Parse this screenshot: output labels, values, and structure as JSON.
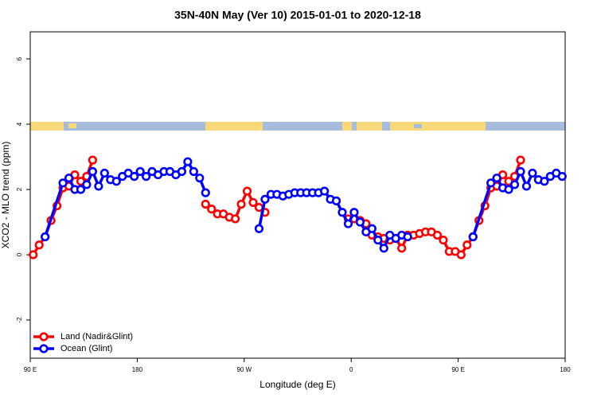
{
  "chart_data": {
    "type": "line",
    "title": "35N-40N May (Ver 10)   2015-01-01 to 2020-12-18",
    "x_label": "Longitude (deg E)",
    "y_label": "XCO2 - MLO trend (ppm)",
    "xlim": [
      90,
      540
    ],
    "xticks": [
      {
        "value": 90,
        "label": "90 E"
      },
      {
        "value": 180,
        "label": "180"
      },
      {
        "value": 270,
        "label": "90 W"
      },
      {
        "value": 360,
        "label": "0"
      },
      {
        "value": 450,
        "label": "90 E"
      },
      {
        "value": 540,
        "label": "180"
      }
    ],
    "ylim": [
      -3.17,
      6.83
    ],
    "yticks": [
      -2,
      0,
      2,
      4,
      6
    ],
    "legend": "bottom-left",
    "series": [
      {
        "name": "Land (Nadir&Glint)",
        "color": "#ff0000",
        "x": [
          92.5,
          97.5,
          102.5,
          107.5,
          112.5,
          117.5,
          122.5,
          127.5,
          132.5,
          137.5,
          142.5,
          190,
          237.5,
          242.5,
          247.5,
          252.5,
          257.5,
          262.5,
          267.5,
          272.5,
          277.5,
          282.5,
          287.5,
          320,
          357.5,
          362.5,
          367.5,
          372.5,
          377.5,
          382.5,
          387.5,
          392.5,
          397.5,
          402.5,
          407.5,
          412.5,
          417.5,
          422.5,
          427.5,
          432.5,
          437.5,
          442.5,
          447.5,
          452.5,
          457.5,
          462.5,
          467.5,
          472.5,
          477.5,
          482.5,
          487.5,
          492.5,
          497.5,
          502.5
        ],
        "values": [
          0.0,
          0.3,
          0.55,
          1.05,
          1.5,
          2.05,
          2.1,
          2.45,
          2.25,
          2.4,
          2.9,
          null,
          1.55,
          1.4,
          1.25,
          1.25,
          1.15,
          1.1,
          1.55,
          1.95,
          1.6,
          1.45,
          1.3,
          null,
          1.1,
          1.1,
          1.05,
          0.95,
          0.6,
          0.55,
          0.5,
          0.45,
          0.5,
          0.2,
          0.6,
          0.6,
          0.65,
          0.7,
          0.7,
          0.6,
          0.45,
          0.1,
          0.1,
          0.0,
          0.3,
          0.55,
          1.05,
          1.5,
          2.05,
          2.1,
          2.45,
          2.25,
          2.4,
          2.9
        ]
      },
      {
        "name": "Ocean (Glint)",
        "color": "#0000ff",
        "x": [
          102.5,
          117.5,
          122.5,
          127.5,
          132.5,
          137.5,
          142.5,
          147.5,
          152.5,
          157.5,
          162.5,
          167.5,
          172.5,
          177.5,
          182.5,
          187.5,
          192.5,
          197.5,
          202.5,
          207.5,
          212.5,
          217.5,
          222.5,
          227.5,
          232.5,
          237.5,
          260,
          282.5,
          287.5,
          292.5,
          297.5,
          302.5,
          307.5,
          312.5,
          317.5,
          322.5,
          327.5,
          332.5,
          337.5,
          342.5,
          347.5,
          352.5,
          357.5,
          362.5,
          367.5,
          372.5,
          377.5,
          382.5,
          387.5,
          392.5,
          397.5,
          402.5,
          407.5,
          435,
          462.5,
          477.5,
          482.5,
          487.5,
          492.5,
          497.5,
          502.5,
          507.5,
          512.5,
          517.5,
          522.5,
          527.5,
          532.5,
          537.5
        ],
        "values": [
          0.55,
          2.2,
          2.35,
          2.0,
          2.0,
          2.15,
          2.55,
          2.1,
          2.5,
          2.3,
          2.25,
          2.4,
          2.5,
          2.4,
          2.55,
          2.4,
          2.55,
          2.45,
          2.55,
          2.55,
          2.45,
          2.55,
          2.85,
          2.55,
          2.35,
          1.9,
          null,
          0.8,
          1.7,
          1.85,
          1.85,
          1.8,
          1.85,
          1.9,
          1.9,
          1.9,
          1.9,
          1.9,
          1.95,
          1.7,
          1.65,
          1.3,
          0.95,
          1.3,
          1.0,
          0.7,
          0.8,
          0.45,
          0.2,
          0.6,
          0.5,
          0.6,
          0.55,
          null,
          0.55,
          2.2,
          2.35,
          2.05,
          2.0,
          2.15,
          2.55,
          2.1,
          2.5,
          2.3,
          2.25,
          2.4,
          2.5,
          2.4
        ]
      }
    ]
  }
}
